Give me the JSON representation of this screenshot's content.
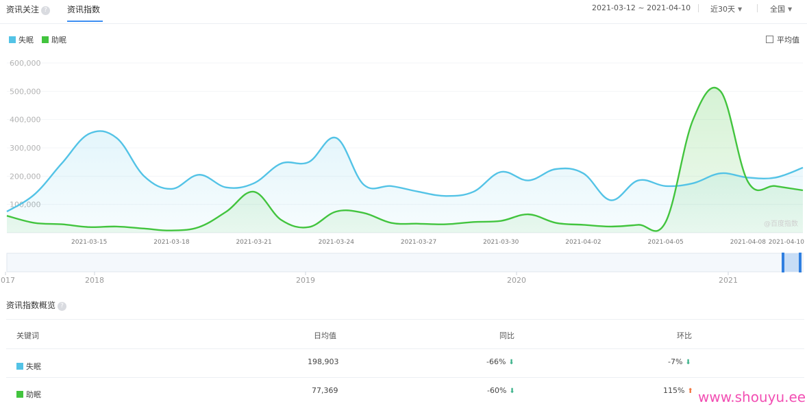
{
  "tabs": {
    "follow": "资讯关注",
    "index": "资讯指数",
    "help": "?"
  },
  "controls": {
    "date_range": "2021-03-12 ~ 2021-04-10",
    "period": "近30天",
    "region": "全国"
  },
  "legend": {
    "items": [
      {
        "label": "失眠",
        "color": "#53c3e6"
      },
      {
        "label": "助眠",
        "color": "#42c43e"
      }
    ],
    "avg_label": "平均值"
  },
  "chart_data": {
    "type": "line",
    "ylim": [
      0,
      600000
    ],
    "yticks": [
      "600,000",
      "500,000",
      "400,000",
      "300,000",
      "200,000",
      "100,000"
    ],
    "xtick_labels": [
      "2021-03-15",
      "2021-03-18",
      "2021-03-21",
      "2021-03-24",
      "2021-03-27",
      "2021-03-30",
      "2021-04-02",
      "2021-04-05",
      "2021-04-08",
      "2021-04-10"
    ],
    "x": [
      "2021-03-12",
      "2021-03-13",
      "2021-03-14",
      "2021-03-15",
      "2021-03-16",
      "2021-03-17",
      "2021-03-18",
      "2021-03-19",
      "2021-03-20",
      "2021-03-21",
      "2021-03-22",
      "2021-03-23",
      "2021-03-24",
      "2021-03-25",
      "2021-03-26",
      "2021-03-27",
      "2021-03-28",
      "2021-03-29",
      "2021-03-30",
      "2021-03-31",
      "2021-04-01",
      "2021-04-02",
      "2021-04-03",
      "2021-04-04",
      "2021-04-05",
      "2021-04-06",
      "2021-04-07",
      "2021-04-08",
      "2021-04-09",
      "2021-04-10"
    ],
    "series": [
      {
        "name": "失眠",
        "color": "#53c3e6",
        "values": [
          75000,
          135000,
          245000,
          350000,
          335000,
          200000,
          155000,
          205000,
          160000,
          175000,
          245000,
          250000,
          335000,
          170000,
          165000,
          145000,
          130000,
          145000,
          215000,
          185000,
          225000,
          210000,
          115000,
          185000,
          165000,
          175000,
          210000,
          195000,
          195000,
          230000
        ]
      },
      {
        "name": "助眠",
        "color": "#42c43e",
        "values": [
          60000,
          35000,
          30000,
          20000,
          22000,
          15000,
          8000,
          20000,
          75000,
          145000,
          45000,
          20000,
          75000,
          70000,
          35000,
          32000,
          30000,
          38000,
          42000,
          65000,
          35000,
          28000,
          22000,
          28000,
          38000,
          400000,
          500000,
          180000,
          165000,
          150000
        ]
      }
    ]
  },
  "timeline": {
    "years": [
      "2017",
      "2018",
      "2019",
      "2020",
      "2021"
    ]
  },
  "watermark_chart": "@百度指数",
  "overview": {
    "title": "资讯指数概览",
    "headers": [
      "关键词",
      "日均值",
      "同比",
      "环比"
    ],
    "rows": [
      {
        "keyword": "失眠",
        "color": "#53c3e6",
        "avg": "198,903",
        "yoy": "-66%",
        "yoy_dir": "down",
        "mom": "-7%",
        "mom_dir": "down"
      },
      {
        "keyword": "助眠",
        "color": "#42c43e",
        "avg": "77,369",
        "yoy": "-60%",
        "yoy_dir": "down",
        "mom": "115%",
        "mom_dir": "up"
      }
    ]
  },
  "site_watermark": "www.shouyu.ee"
}
